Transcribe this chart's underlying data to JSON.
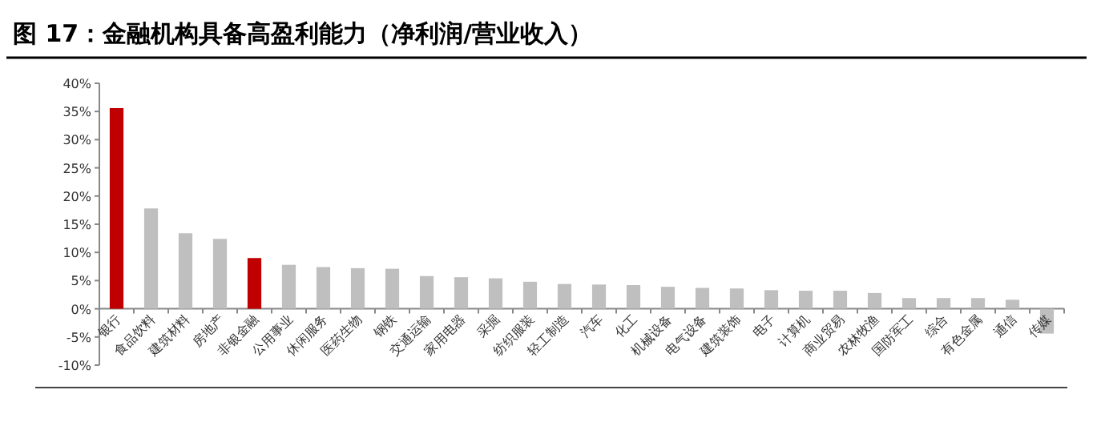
{
  "chart_data": {
    "type": "bar",
    "title": "图 17：金融机构具备高盈利能力（净利润/营业收入）",
    "categories": [
      "银行",
      "食品饮料",
      "建筑材料",
      "房地产",
      "非银金融",
      "公用事业",
      "休闲服务",
      "医药生物",
      "钢铁",
      "交通运输",
      "家用电器",
      "采掘",
      "纺织服装",
      "轻工制造",
      "汽车",
      "化工",
      "机械设备",
      "电气设备",
      "建筑装饰",
      "电子",
      "计算机",
      "商业贸易",
      "农林牧渔",
      "国防军工",
      "综合",
      "有色金属",
      "通信",
      "传媒"
    ],
    "values": [
      35.6,
      17.8,
      13.4,
      12.4,
      9.0,
      7.8,
      7.4,
      7.2,
      7.1,
      5.8,
      5.6,
      5.4,
      4.8,
      4.4,
      4.3,
      4.2,
      3.9,
      3.7,
      3.6,
      3.3,
      3.2,
      3.2,
      2.8,
      1.9,
      1.9,
      1.9,
      1.6,
      -4.4
    ],
    "colors": [
      "#c00000",
      "#bfbfbf",
      "#bfbfbf",
      "#bfbfbf",
      "#c00000",
      "#bfbfbf",
      "#bfbfbf",
      "#bfbfbf",
      "#bfbfbf",
      "#bfbfbf",
      "#bfbfbf",
      "#bfbfbf",
      "#bfbfbf",
      "#bfbfbf",
      "#bfbfbf",
      "#bfbfbf",
      "#bfbfbf",
      "#bfbfbf",
      "#bfbfbf",
      "#bfbfbf",
      "#bfbfbf",
      "#bfbfbf",
      "#bfbfbf",
      "#bfbfbf",
      "#bfbfbf",
      "#bfbfbf",
      "#bfbfbf",
      "#bfbfbf"
    ],
    "ylim": [
      -10,
      40
    ],
    "yticks": [
      {
        "value": -10,
        "label": "-10%"
      },
      {
        "value": -5,
        "label": "-5%"
      },
      {
        "value": 0,
        "label": "0%"
      },
      {
        "value": 5,
        "label": "5%"
      },
      {
        "value": 10,
        "label": "10%"
      },
      {
        "value": 15,
        "label": "15%"
      },
      {
        "value": 20,
        "label": "20%"
      },
      {
        "value": 25,
        "label": "25%"
      },
      {
        "value": 30,
        "label": "30%"
      },
      {
        "value": 35,
        "label": "35%"
      },
      {
        "value": 40,
        "label": "40%"
      }
    ],
    "grid": false
  }
}
